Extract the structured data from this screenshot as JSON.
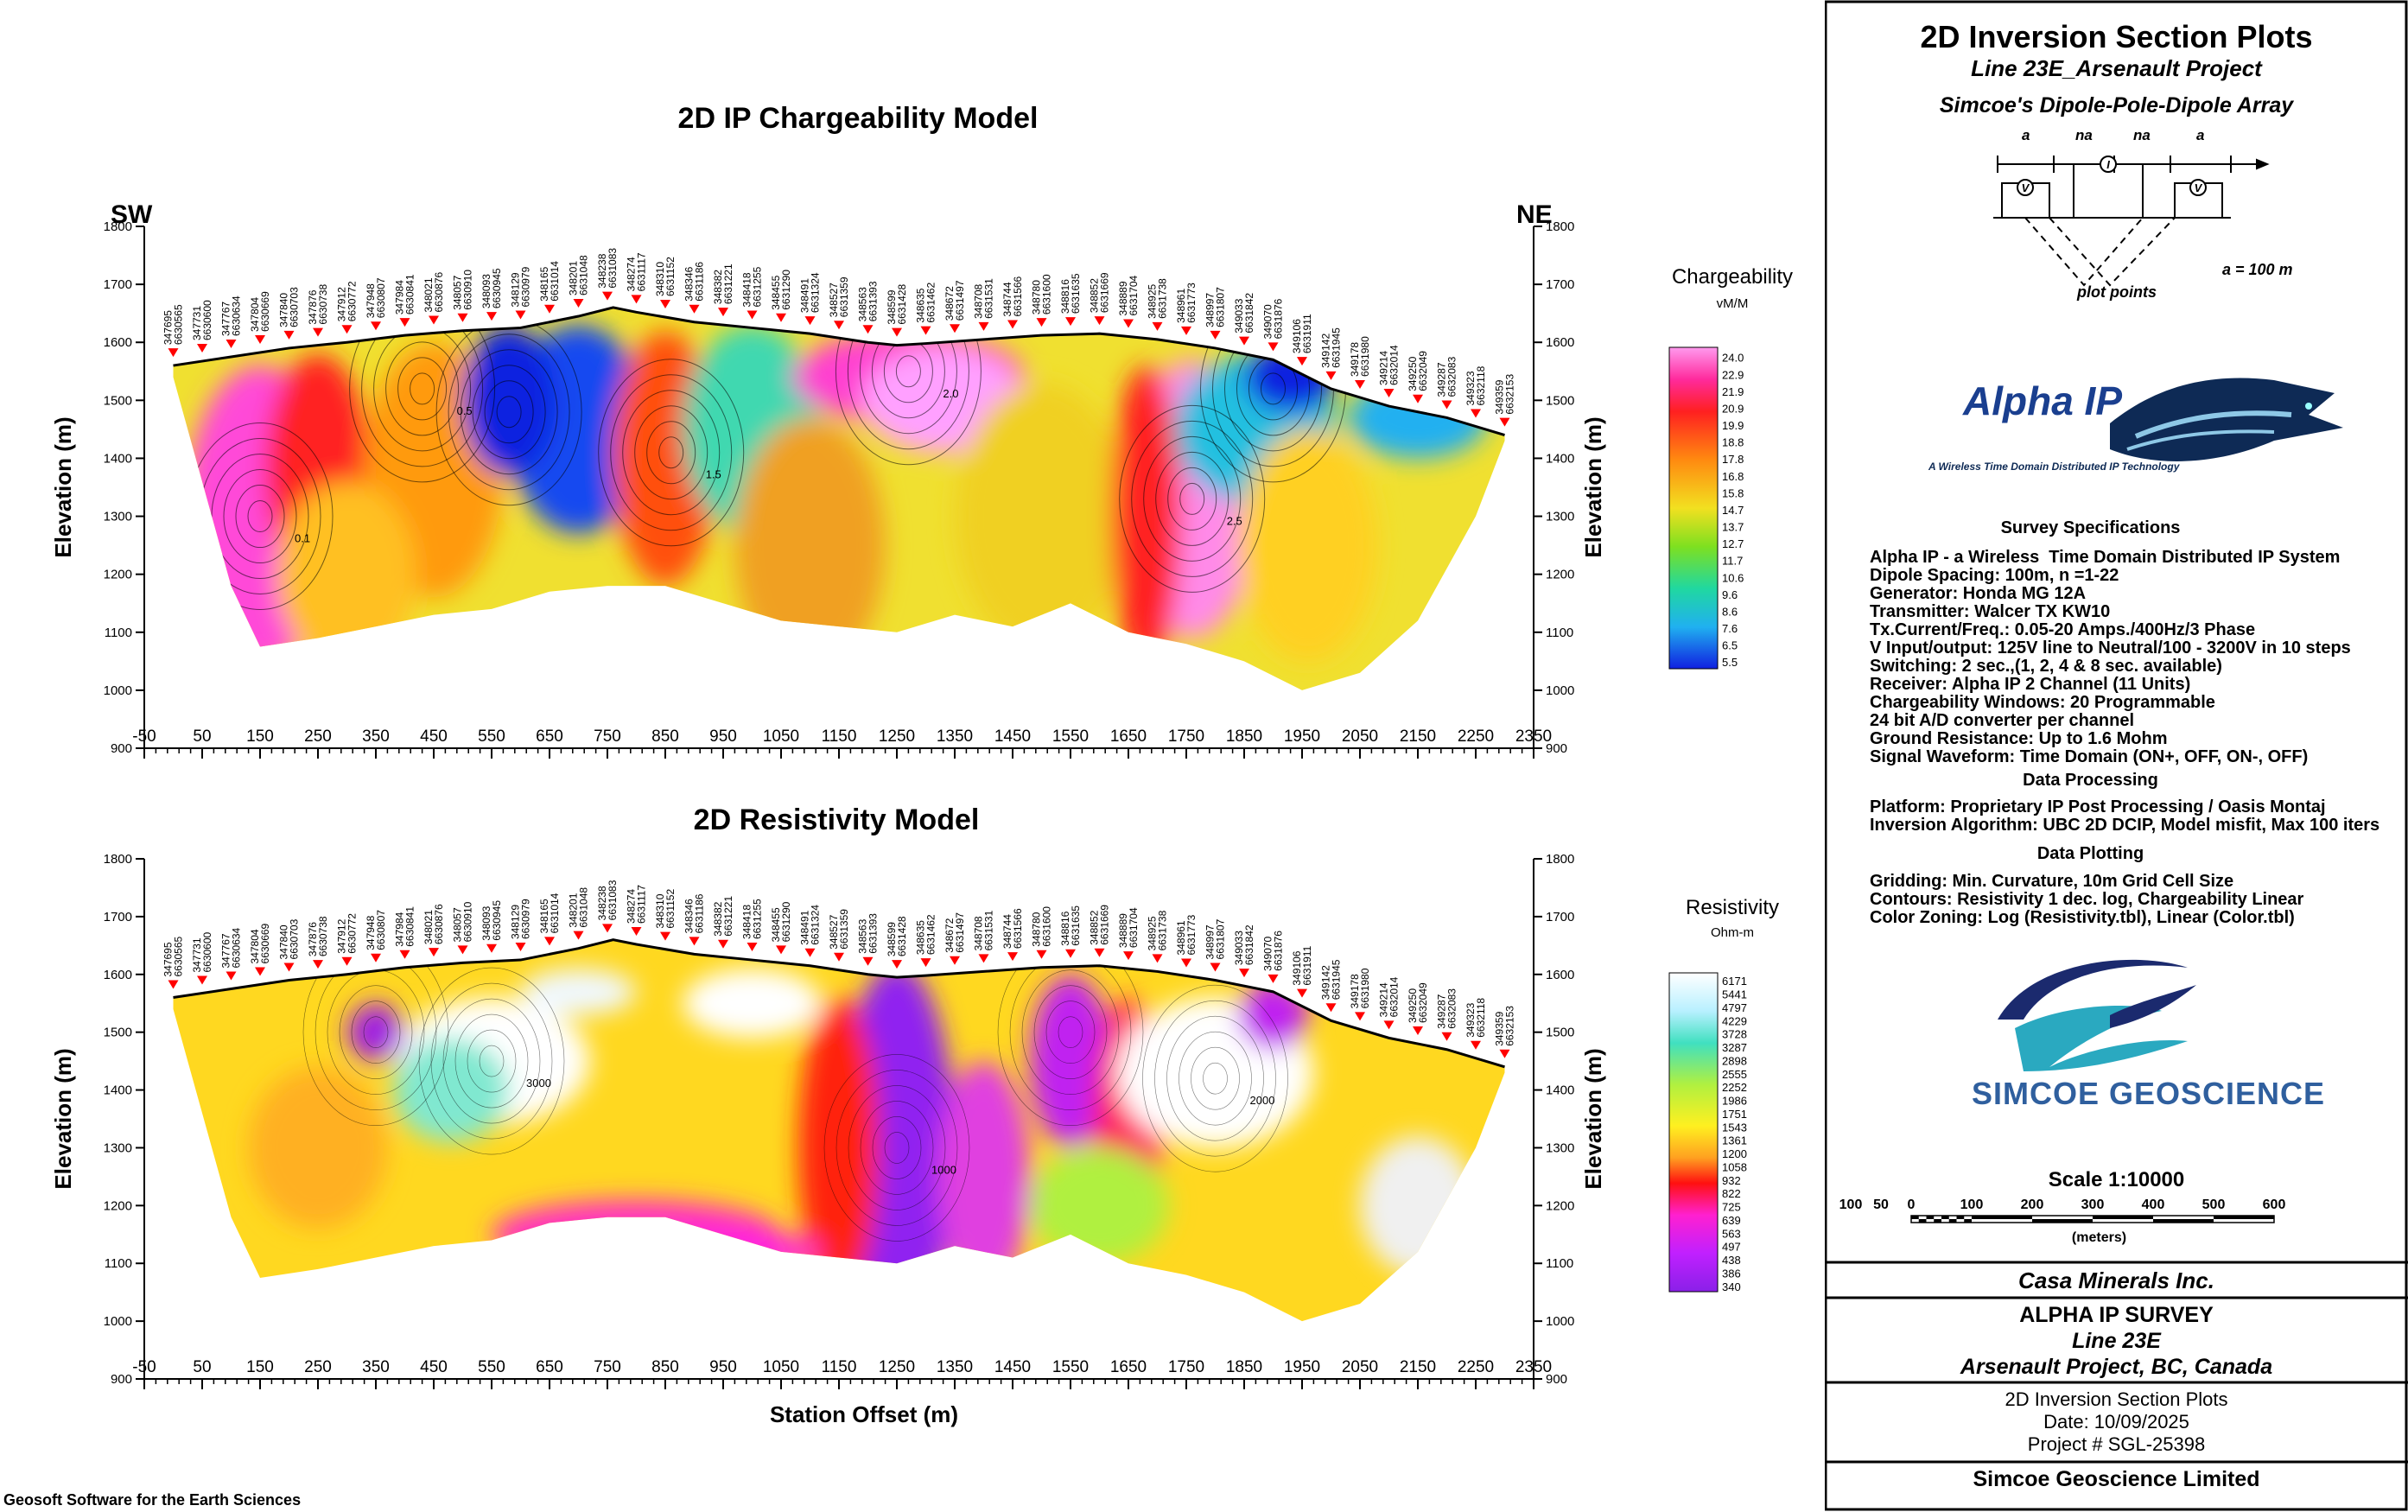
{
  "charge": {
    "title": "2D IP Chargeability Model",
    "sw": "SW",
    "ne": "NE",
    "ylabel": "Elevation (m)",
    "legend_title": "Chargeability",
    "legend_unit": "vM/M",
    "legend_values": [
      "24.0",
      "22.9",
      "21.9",
      "20.9",
      "19.9",
      "18.8",
      "17.8",
      "16.8",
      "15.8",
      "14.7",
      "13.7",
      "12.7",
      "11.7",
      "10.6",
      "9.6",
      "8.6",
      "7.6",
      "6.5",
      "5.5"
    ]
  },
  "resist": {
    "title": "2D Resistivity Model",
    "ylabel": "Elevation (m)",
    "xlabel": "Station Offset (m)",
    "legend_title": "Resistivity",
    "legend_unit": "Ohm-m",
    "legend_values": [
      "6171",
      "5441",
      "4797",
      "4229",
      "3728",
      "3287",
      "2898",
      "2555",
      "2252",
      "1986",
      "1751",
      "1543",
      "1361",
      "1200",
      "1058",
      "932",
      "822",
      "725",
      "639",
      "563",
      "497",
      "438",
      "386",
      "340"
    ]
  },
  "axes": {
    "x_ticks": [
      "-50",
      "50",
      "150",
      "250",
      "350",
      "450",
      "550",
      "650",
      "750",
      "850",
      "950",
      "1050",
      "1150",
      "1250",
      "1350",
      "1450",
      "1550",
      "1650",
      "1750",
      "1850",
      "1950",
      "2050",
      "2150",
      "2250",
      "2350"
    ],
    "y_ticks": [
      "1800",
      "1700",
      "1600",
      "1500",
      "1400",
      "1300",
      "1200",
      "1100",
      "1000",
      "900"
    ]
  },
  "stations": [
    "347695 6630565",
    "347731 6630600",
    "347767 6630634",
    "347804 6630669",
    "347840 6630703",
    "347876 6630738",
    "347912 6630772",
    "347948 6630807",
    "347984 6630841",
    "348021 6630876",
    "348057 6630910",
    "348093 6630945",
    "348129 6630979",
    "348165 6631014",
    "348201 6631048",
    "348238 6631083",
    "348274 6631117",
    "348310 6631152",
    "348346 6631186",
    "348382 6631221",
    "348418 6631255",
    "348455 6631290",
    "348491 6631324",
    "348527 6631359",
    "348563 6631393",
    "348599 6631428",
    "348635 6631462",
    "348672 6631497",
    "348708 6631531",
    "348744 6631566",
    "348780 6631600",
    "348816 6631635",
    "348852 6631669",
    "348889 6631704",
    "348925 6631738",
    "348961 6631773",
    "348997 6631807",
    "349033 6631842",
    "349070 6631876",
    "349106 6631911",
    "349142 6631945",
    "349178 6631980",
    "349214 6632014",
    "349250 6632049",
    "349287 6632083",
    "349323 6632118",
    "349359 6632153"
  ],
  "chart_data": [
    {
      "type": "heatmap",
      "title": "2D IP Chargeability Model",
      "xlabel": "",
      "ylabel": "Elevation (m)",
      "xlim": [
        -50,
        2350
      ],
      "ylim": [
        900,
        1800
      ],
      "colorbar": {
        "title": "Chargeability",
        "unit": "vM/M",
        "min": 5.5,
        "max": 24.0
      },
      "contour_labels": [
        "0.1",
        "0.5",
        "1.5",
        "2.0",
        "2.5"
      ],
      "topography": {
        "x": [
          0,
          100,
          200,
          300,
          400,
          500,
          600,
          700,
          760,
          800,
          900,
          1000,
          1100,
          1200,
          1250,
          1300,
          1400,
          1500,
          1600,
          1700,
          1800,
          1900,
          2000,
          2100,
          2200,
          2300
        ],
        "y": [
          1560,
          1575,
          1590,
          1600,
          1612,
          1620,
          1625,
          1645,
          1660,
          1652,
          1635,
          1625,
          1615,
          1600,
          1595,
          1598,
          1605,
          1612,
          1615,
          1605,
          1590,
          1570,
          1520,
          1490,
          1470,
          1440
        ]
      },
      "anomalies": [
        {
          "x": 150,
          "y": 1300,
          "value": 24.0
        },
        {
          "x": 430,
          "y": 1520,
          "value": 21.0
        },
        {
          "x": 860,
          "y": 1410,
          "value": 20.5
        },
        {
          "x": 1270,
          "y": 1550,
          "value": 23.0
        },
        {
          "x": 1760,
          "y": 1330,
          "value": 24.0
        },
        {
          "x": 580,
          "y": 1480,
          "value": 5.5
        },
        {
          "x": 1900,
          "y": 1520,
          "value": 5.5
        }
      ]
    },
    {
      "type": "heatmap",
      "title": "2D Resistivity Model",
      "xlabel": "Station Offset (m)",
      "ylabel": "Elevation (m)",
      "xlim": [
        -50,
        2350
      ],
      "ylim": [
        900,
        1800
      ],
      "colorbar": {
        "title": "Resistivity",
        "unit": "Ohm-m",
        "scale": "log",
        "min": 340,
        "max": 6171
      },
      "contour_labels": [
        "3000",
        "2000",
        "1000"
      ],
      "anomalies": [
        {
          "x": 550,
          "y": 1450,
          "value": 6000
        },
        {
          "x": 1800,
          "y": 1420,
          "value": 6171
        },
        {
          "x": 1250,
          "y": 1300,
          "value": 340
        },
        {
          "x": 350,
          "y": 1500,
          "value": 400
        },
        {
          "x": 1550,
          "y": 1500,
          "value": 400
        }
      ]
    }
  ],
  "titleblock": {
    "main": "2D Inversion Section Plots",
    "line": "Line 23E_Arsenault Project",
    "array": "Simcoe's Dipole-Pole-Dipole Array",
    "a_label": "a",
    "na_label": "na",
    "plot_points": "plot points",
    "a_value": "a = 100 m",
    "logo_alpha": "Alpha IP",
    "logo_alpha_sub": "A Wireless Time Domain Distributed IP Technology",
    "survey_h": "Survey Specifications",
    "survey": [
      "Alpha IP - a Wireless  Time Domain Distributed IP System",
      "Dipole Spacing: 100m, n =1-22",
      "Generator: Honda MG 12A",
      "Transmitter: Walcer TX KW10",
      "Tx.Current/Freq.: 0.05-20 Amps./400Hz/3 Phase",
      "V Input/output: 125V line to Neutral/100 - 3200V in 10 steps",
      "Switching: 2 sec.,(1, 2, 4 & 8 sec. available)",
      "Receiver: Alpha IP 2 Channel (11 Units)",
      "Chargeability Windows: 20 Programmable",
      "24 bit A/D converter per channel",
      "Ground Resistance: Up to 1.6 Mohm",
      "Signal Waveform: Time Domain (ON+, OFF, ON-, OFF)"
    ],
    "processing_h": "Data Processing",
    "processing": [
      "Platform: Proprietary IP Post Processing / Oasis Montaj",
      "Inversion Algorithm: UBC 2D DCIP, Model misfit, Max 100 iters"
    ],
    "plotting_h": "Data Plotting",
    "plotting": [
      "Gridding: Min. Curvature, 10m Grid Cell Size",
      "Contours: Resistivity 1 dec. log, Chargeability Linear",
      "Color Zoning: Log (Resistivity.tbl), Linear (Color.tbl)"
    ],
    "logo_simcoe": "SIMCOE GEOSCIENCE",
    "scale": "Scale 1:10000",
    "scale_ticks": [
      "100",
      "50",
      "0",
      "100",
      "200",
      "300",
      "400",
      "500",
      "600"
    ],
    "scale_unit": "(meters)",
    "client": "Casa Minerals Inc.",
    "survey_name": "ALPHA IP SURVEY",
    "line_name": "Line 23E",
    "project": "Arsenault Project, BC, Canada",
    "plot_name": "2D Inversion Section Plots",
    "date": "Date: 10/09/2025",
    "project_no": "Project # SGL-25398",
    "company": "Simcoe Geoscience Limited"
  },
  "footer": "Geosoft Software for the Earth Sciences"
}
